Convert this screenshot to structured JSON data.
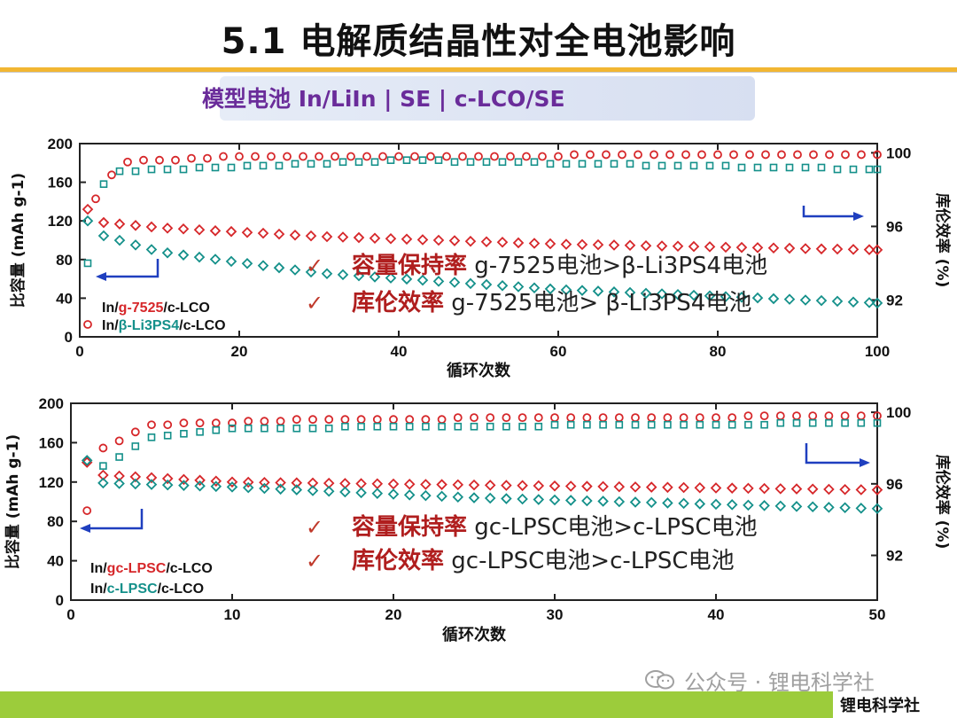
{
  "title": "5.1 电解质结晶性对全电池影响",
  "subtitle": "模型电池 In/LiIn | SE | c-LCO/SE",
  "footer": "锂电科学社",
  "watermark": "公众号 · 锂电科学社",
  "colors": {
    "red": "#d6272a",
    "teal": "#14908a",
    "arrow": "#1f3fbf",
    "accent": "#f2b632",
    "footer": "#9ccc3b"
  },
  "chart_data": [
    {
      "type": "scatter",
      "xlabel": "循环次数",
      "ylabel": "比容量 (mAh g-1)",
      "y2label": "库伦效率 (%)",
      "xlim": [
        0,
        100
      ],
      "ylim": [
        0,
        200
      ],
      "y2lim": [
        90,
        100.5
      ],
      "xticks": [
        0,
        20,
        40,
        60,
        80,
        100
      ],
      "yticks": [
        0,
        40,
        80,
        120,
        160,
        200
      ],
      "y2ticks": [
        92,
        96,
        100
      ],
      "legend": [
        "In/g-7525/c-LCO",
        "In/β-Li3PS4/c-LCO"
      ],
      "legend_parts": [
        {
          "pre": "In/",
          "mid": "g-7525",
          "post": "/c-LCO"
        },
        {
          "pre": "In/",
          "mid": "β-Li3PS4",
          "post": "/c-LCO"
        }
      ],
      "series": [
        {
          "name": "In/g-7525/c-LCO",
          "kind": "capacity",
          "color": "#d6272a",
          "x_start": 1,
          "x_end": 100,
          "values_at": {
            "1": 132,
            "2": 119,
            "10": 113,
            "30": 104,
            "60": 96,
            "100": 90
          }
        },
        {
          "name": "In/β-Li3PS4/c-LCO",
          "kind": "capacity",
          "color": "#14908a",
          "x_start": 1,
          "x_end": 100,
          "values_at": {
            "1": 120,
            "2": 107,
            "10": 88,
            "30": 66,
            "60": 49,
            "100": 35
          }
        },
        {
          "name": "In/g-7525/c-LCO",
          "kind": "coulombic",
          "color": "#d6272a",
          "x_start": 2,
          "x_end": 100,
          "values_at": {
            "2": 97.5,
            "5": 99.5,
            "20": 99.8,
            "100": 99.9
          }
        },
        {
          "name": "In/β-Li3PS4/c-LCO",
          "kind": "coulombic",
          "color": "#14908a",
          "x_start": 1,
          "x_end": 100,
          "values_at": {
            "1": 94.0,
            "2": 97.9,
            "5": 99.0,
            "40": 99.6,
            "100": 99.1
          }
        }
      ],
      "annotations": [
        {
          "label": "容量保持率",
          "text": " g-7525电池>β-Li3PS4电池"
        },
        {
          "label": "库伦效率",
          "text": " g-7525电池> β-Li3PS4电池"
        }
      ]
    },
    {
      "type": "scatter",
      "xlabel": "循环次数",
      "ylabel": "比容量 (mAh g-1)",
      "y2label": "库伦效率 (%)",
      "xlim": [
        0,
        50
      ],
      "ylim": [
        0,
        200
      ],
      "y2lim": [
        89.5,
        100.5
      ],
      "xticks": [
        0,
        10,
        20,
        30,
        40,
        50
      ],
      "yticks": [
        0,
        40,
        80,
        120,
        160,
        200
      ],
      "y2ticks": [
        92,
        96,
        100
      ],
      "legend": [
        "In/gc-LPSC/c-LCO",
        "In/c-LPSC/c-LCO"
      ],
      "legend_parts": [
        {
          "pre": "In/",
          "mid": "gc-LPSC",
          "post": "/c-LCO"
        },
        {
          "pre": "In/",
          "mid": "c-LPSC",
          "post": "/c-LCO"
        }
      ],
      "series": [
        {
          "name": "In/gc-LPSC/c-LCO",
          "kind": "capacity",
          "color": "#d6272a",
          "x_start": 1,
          "x_end": 50,
          "values_at": {
            "1": 140,
            "2": 127,
            "10": 120,
            "50": 112
          }
        },
        {
          "name": "In/c-LPSC/c-LCO",
          "kind": "capacity",
          "color": "#14908a",
          "x_start": 1,
          "x_end": 50,
          "values_at": {
            "1": 142,
            "2": 119,
            "10": 115,
            "25": 104,
            "50": 93
          }
        },
        {
          "name": "In/gc-LPSC/c-LCO",
          "kind": "coulombic",
          "color": "#d6272a",
          "x_start": 1,
          "x_end": 50,
          "values_at": {
            "1": 94.5,
            "2": 98.0,
            "5": 99.3,
            "15": 99.6,
            "50": 99.8
          }
        },
        {
          "name": "In/c-LPSC/c-LCO",
          "kind": "coulombic",
          "color": "#14908a",
          "x_start": 2,
          "x_end": 50,
          "values_at": {
            "2": 97.0,
            "5": 98.6,
            "10": 99.1,
            "50": 99.4
          }
        }
      ],
      "annotations": [
        {
          "label": "容量保持率",
          "text": " gc-LPSC电池>c-LPSC电池"
        },
        {
          "label": "库伦效率",
          "text": " gc-LPSC电池>c-LPSC电池"
        }
      ]
    }
  ]
}
